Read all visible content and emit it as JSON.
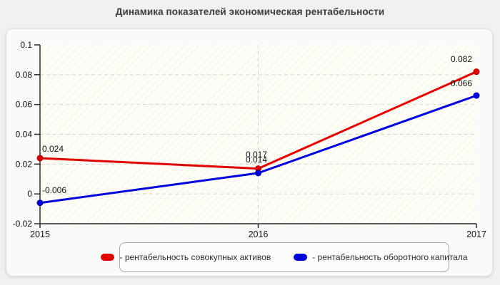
{
  "page": {
    "title": "Динамика показателей экономическая рентабельности"
  },
  "chart_data": {
    "type": "line",
    "title": "Динамика показателей экономическая рентабельности",
    "x_labels": [
      "2015",
      "2016",
      "2017"
    ],
    "y_tick_labels": [
      "0.1",
      "0.08",
      "0.06",
      "0.04",
      "0.02",
      "0",
      "-0.02"
    ],
    "y_tick_values": [
      0.1,
      0.08,
      0.06,
      0.04,
      0.02,
      0,
      -0.02
    ],
    "ylim": [
      -0.02,
      0.1
    ],
    "grid": "dashed horizontal gridlines at each y tick, dashed vertical gridline at 2016",
    "legend_position": "bottom",
    "colors": {
      "axis": "#2a2a2a",
      "gridline": "#d5d5d5",
      "plot_background": "#fbfaef",
      "label_text": "#111111"
    },
    "series": [
      {
        "name": "рентабельность совокупных активов",
        "legend_label": "- рентабельность совокупных активов",
        "color": "#e00000",
        "marker_edge": "#a80000",
        "values": [
          0.024,
          0.017,
          0.082
        ],
        "point_labels": [
          "0.024",
          "0.017",
          "0.082"
        ]
      },
      {
        "name": "рентабельность оборотного капитала",
        "legend_label": "- рентабельность оборотного капитала",
        "color": "#0000dd",
        "marker_edge": "#0000a0",
        "values": [
          -0.006,
          0.014,
          0.066
        ],
        "point_labels": [
          "-0.006",
          "0.014",
          "0.066"
        ]
      }
    ]
  }
}
